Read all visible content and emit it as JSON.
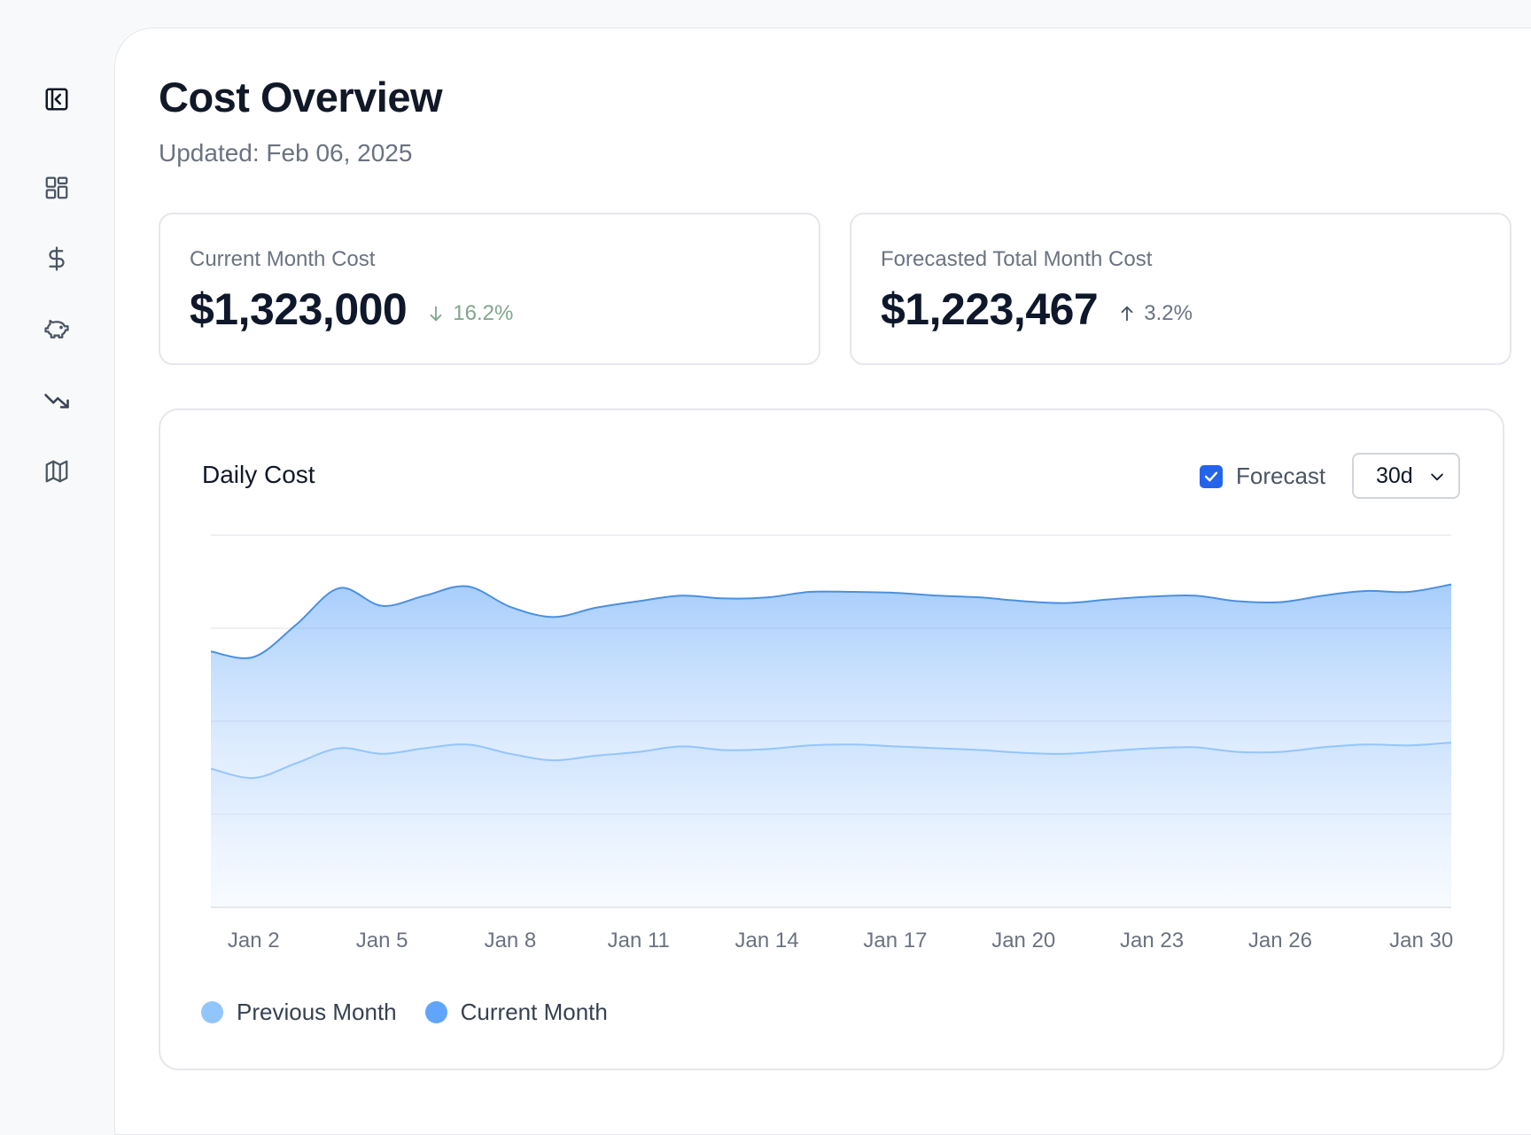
{
  "page": {
    "title": "Cost Overview",
    "updated": "Updated: Feb 06, 2025"
  },
  "sidebar": {
    "items": [
      {
        "name": "collapse-sidebar",
        "icon": "panel-left-icon"
      },
      {
        "name": "dashboard",
        "icon": "layout-grid-icon"
      },
      {
        "name": "costs",
        "icon": "dollar-icon"
      },
      {
        "name": "savings",
        "icon": "piggy-bank-icon"
      },
      {
        "name": "trends",
        "icon": "trending-down-icon"
      },
      {
        "name": "map",
        "icon": "map-icon"
      }
    ]
  },
  "kpis": {
    "current": {
      "label": "Current Month Cost",
      "value": "$1,323,000",
      "delta": "16.2%",
      "direction": "down",
      "color": "#7fa68e"
    },
    "forecast": {
      "label": "Forecasted Total Month Cost",
      "value": "$1,223,467",
      "delta": "3.2%",
      "direction": "up",
      "color": "#6b7280"
    }
  },
  "chart_card": {
    "title": "Daily Cost",
    "forecast_label": "Forecast",
    "forecast_checked": true,
    "range_value": "30d"
  },
  "chart_data": {
    "type": "area",
    "title": "Daily Cost",
    "xlabel": "",
    "ylabel": "",
    "x": [
      1,
      2,
      3,
      4,
      5,
      6,
      7,
      8,
      9,
      10,
      11,
      12,
      13,
      14,
      15,
      16,
      17,
      18,
      19,
      20,
      21,
      22,
      23,
      24,
      25,
      26,
      27,
      28,
      29,
      30
    ],
    "tick_labels": [
      "Jan 2",
      "Jan 5",
      "Jan 8",
      "Jan 11",
      "Jan 14",
      "Jan 17",
      "Jan 20",
      "Jan 23",
      "Jan 26",
      "Jan 30"
    ],
    "tick_positions": [
      2,
      5,
      8,
      11,
      14,
      17,
      20,
      23,
      26,
      29.3
    ],
    "ylim": [
      0,
      4
    ],
    "grid": true,
    "y_axis_labels_visible": false,
    "series": [
      {
        "name": "Current Month",
        "color": "#60a5fa",
        "values": [
          2.75,
          2.69,
          3.04,
          3.43,
          3.24,
          3.35,
          3.45,
          3.23,
          3.12,
          3.22,
          3.29,
          3.35,
          3.32,
          3.33,
          3.39,
          3.39,
          3.38,
          3.35,
          3.33,
          3.29,
          3.27,
          3.31,
          3.34,
          3.35,
          3.29,
          3.28,
          3.35,
          3.4,
          3.39,
          3.47
        ]
      },
      {
        "name": "Previous Month",
        "color": "#93c5fd",
        "values": [
          1.49,
          1.39,
          1.55,
          1.71,
          1.65,
          1.71,
          1.75,
          1.65,
          1.58,
          1.63,
          1.67,
          1.73,
          1.69,
          1.7,
          1.74,
          1.75,
          1.73,
          1.71,
          1.69,
          1.66,
          1.65,
          1.68,
          1.71,
          1.72,
          1.67,
          1.67,
          1.72,
          1.75,
          1.74,
          1.77
        ]
      }
    ],
    "legend": [
      "Previous Month",
      "Current Month"
    ]
  },
  "colors": {
    "accent": "#2563eb",
    "current_series": "#60a5fa",
    "previous_series": "#93c5fd"
  }
}
